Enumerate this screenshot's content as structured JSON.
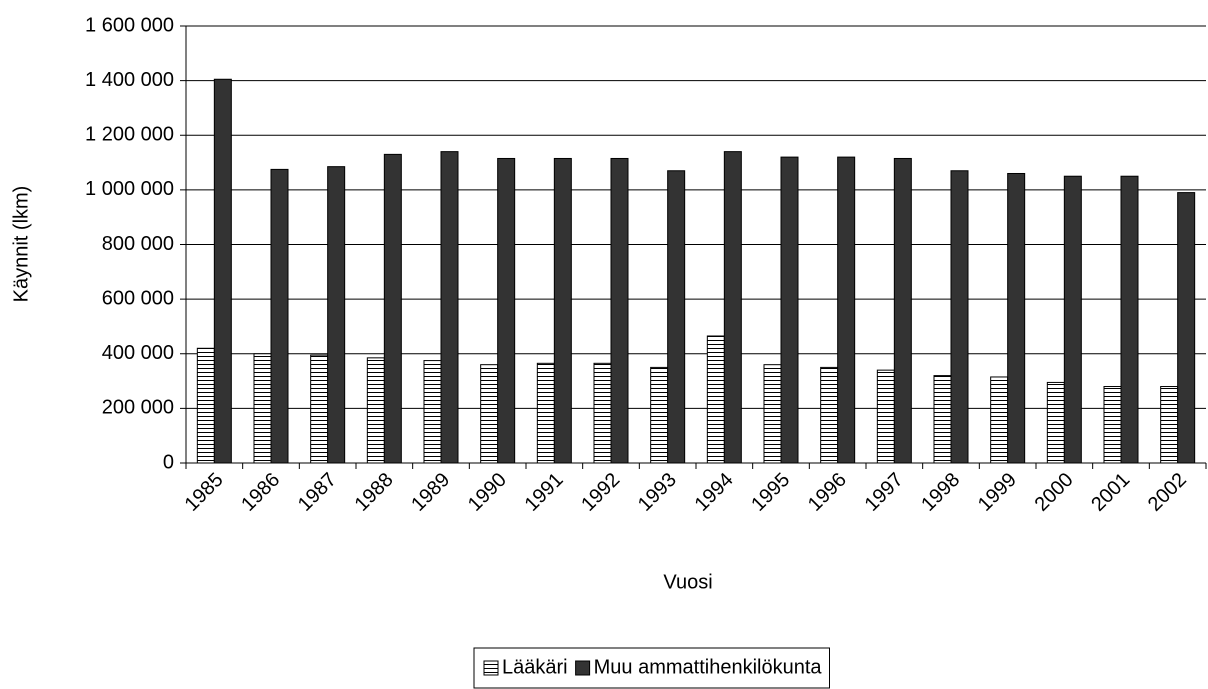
{
  "chart_data": {
    "type": "bar",
    "x_label": "Vuosi",
    "y_label": "Käynnit (lkm)",
    "categories": [
      "1985",
      "1986",
      "1987",
      "1988",
      "1989",
      "1990",
      "1991",
      "1992",
      "1993",
      "1994",
      "1995",
      "1996",
      "1997",
      "1998",
      "1999",
      "2000",
      "2001",
      "2002"
    ],
    "series": [
      {
        "name": "Lääkäri",
        "color": "#ffffff",
        "hatch": "horizontal",
        "values": [
          420000,
          400000,
          395000,
          385000,
          375000,
          360000,
          365000,
          365000,
          350000,
          465000,
          360000,
          350000,
          340000,
          320000,
          315000,
          295000,
          280000,
          280000
        ]
      },
      {
        "name": "Muu ammattihenkilökunta",
        "color": "#333333",
        "values": [
          1405000,
          1075000,
          1085000,
          1130000,
          1140000,
          1115000,
          1115000,
          1115000,
          1070000,
          1140000,
          1120000,
          1120000,
          1115000,
          1070000,
          1060000,
          1050000,
          1050000,
          990000
        ]
      }
    ],
    "ylim": [
      0,
      1600000
    ],
    "yticks": [
      0,
      {
        "value": 200000,
        "label": "200 000"
      },
      {
        "value": 400000,
        "label": "400 000"
      },
      {
        "value": 600000,
        "label": "600 000"
      },
      {
        "value": 800000,
        "label": "800 000"
      },
      {
        "value": 1000000,
        "label": "1 000 000"
      },
      {
        "value": 1200000,
        "label": "1 200 000"
      },
      {
        "value": 1400000,
        "label": "1 400 000"
      },
      {
        "value": 1600000,
        "label": "1 600 000"
      }
    ],
    "grid": true,
    "legend": "bottom"
  }
}
